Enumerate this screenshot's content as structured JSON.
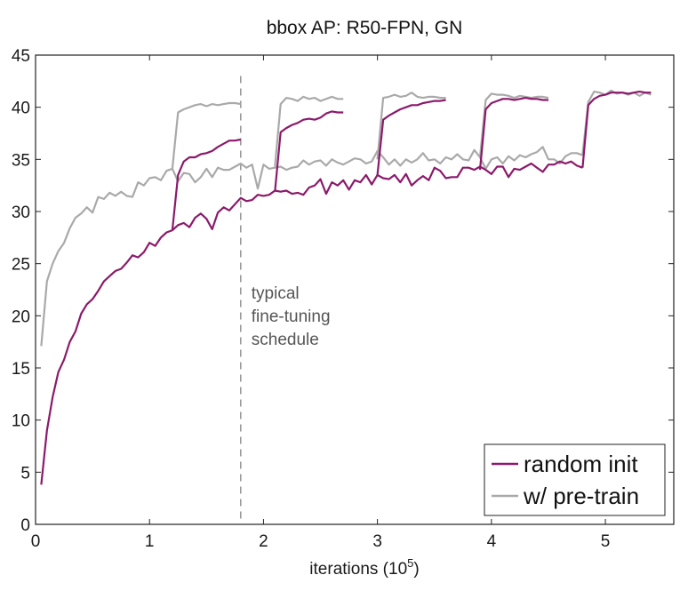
{
  "chart_data": {
    "type": "line",
    "title": "bbox AP: R50-FPN, GN",
    "xlabel": "iterations (10^5)",
    "xlabel_base": "iterations (10",
    "xlabel_exp": "5",
    "xlabel_close": ")",
    "ylabel": "",
    "xlim": [
      0,
      5.6
    ],
    "ylim": [
      0,
      45
    ],
    "xticks": [
      0,
      1,
      2,
      3,
      4,
      5
    ],
    "xtick_labels": [
      "0",
      "1",
      "2",
      "3",
      "4",
      "5"
    ],
    "yticks": [
      0,
      5,
      10,
      15,
      20,
      25,
      30,
      35,
      40,
      45
    ],
    "ytick_labels": [
      "0",
      "5",
      "10",
      "15",
      "20",
      "25",
      "30",
      "35",
      "40",
      "45"
    ],
    "grid": false,
    "legend_position": "bottom-right",
    "annotation": {
      "lines": [
        "typical",
        "fine-tuning",
        "schedule"
      ],
      "vline_x": 1.8
    },
    "series": [
      {
        "name": "random init",
        "color": "#8b1a6b",
        "segments": [
          {
            "x": [
              0.05,
              0.1,
              0.15,
              0.2,
              0.25,
              0.3,
              0.35,
              0.4,
              0.45,
              0.5,
              0.55,
              0.6,
              0.65,
              0.7,
              0.75,
              0.8,
              0.85,
              0.9,
              0.95,
              1.0,
              1.05,
              1.1,
              1.15,
              1.2,
              1.25,
              1.3,
              1.35,
              1.4,
              1.45,
              1.5,
              1.55,
              1.6,
              1.65,
              1.7,
              1.75,
              1.8,
              1.85,
              1.9,
              1.95,
              2.0,
              2.05,
              2.1,
              2.15,
              2.2,
              2.25,
              2.3,
              2.35,
              2.4,
              2.45,
              2.5,
              2.55,
              2.6,
              2.65,
              2.7,
              2.75,
              2.8,
              2.85,
              2.9,
              2.95,
              3.0,
              3.05,
              3.1,
              3.15,
              3.2,
              3.25,
              3.3,
              3.35,
              3.4,
              3.45,
              3.5,
              3.55,
              3.6,
              3.65,
              3.7,
              3.75,
              3.8,
              3.85,
              3.9,
              3.95,
              4.0,
              4.05,
              4.1,
              4.15,
              4.2,
              4.25,
              4.3,
              4.35,
              4.4,
              4.45,
              4.5,
              4.55,
              4.6,
              4.65,
              4.7,
              4.75,
              4.8
            ],
            "y": [
              3.8,
              9.0,
              12.2,
              14.6,
              15.8,
              17.5,
              18.5,
              20.2,
              21.1,
              21.6,
              22.4,
              23.3,
              23.8,
              24.3,
              24.5,
              25.1,
              25.8,
              25.6,
              26.1,
              27.0,
              26.7,
              27.5,
              28.0,
              28.2,
              28.7,
              28.9,
              28.5,
              29.4,
              29.8,
              29.3,
              28.3,
              29.9,
              30.4,
              30.1,
              30.7,
              31.3,
              31.0,
              31.1,
              31.6,
              31.5,
              31.6,
              32.0,
              31.9,
              32.0,
              31.7,
              31.8,
              31.6,
              32.3,
              32.5,
              33.1,
              31.7,
              32.8,
              32.5,
              33.0,
              32.1,
              33.0,
              32.8,
              33.5,
              32.6,
              33.5,
              33.2,
              33.1,
              33.5,
              32.8,
              33.6,
              32.5,
              33.0,
              33.4,
              33.0,
              34.2,
              33.9,
              33.2,
              33.3,
              33.3,
              34.2,
              34.2,
              34.0,
              34.3,
              34.0,
              33.6,
              34.3,
              34.3,
              33.3,
              34.1,
              34.0,
              34.3,
              34.6,
              34.2,
              33.8,
              34.5,
              34.5,
              34.8,
              34.6,
              34.8,
              34.4,
              34.2
            ]
          },
          {
            "x": [
              1.2,
              1.25,
              1.3,
              1.35,
              1.4,
              1.45,
              1.5,
              1.55,
              1.6,
              1.65,
              1.7,
              1.75,
              1.8
            ],
            "y": [
              28.2,
              33.5,
              34.8,
              35.2,
              35.2,
              35.5,
              35.6,
              35.8,
              36.2,
              36.5,
              36.8,
              36.8,
              36.9
            ]
          },
          {
            "x": [
              2.1,
              2.15,
              2.2,
              2.25,
              2.3,
              2.35,
              2.4,
              2.45,
              2.5,
              2.55,
              2.6,
              2.65,
              2.7
            ],
            "y": [
              31.9,
              37.6,
              38.0,
              38.3,
              38.5,
              38.8,
              38.9,
              38.8,
              39.0,
              39.4,
              39.6,
              39.5,
              39.5
            ]
          },
          {
            "x": [
              3.0,
              3.05,
              3.1,
              3.15,
              3.2,
              3.25,
              3.3,
              3.35,
              3.4,
              3.45,
              3.5,
              3.55,
              3.6
            ],
            "y": [
              33.5,
              38.8,
              39.2,
              39.5,
              39.8,
              40.0,
              40.2,
              40.2,
              40.4,
              40.5,
              40.6,
              40.6,
              40.7
            ]
          },
          {
            "x": [
              3.9,
              3.95,
              4.0,
              4.05,
              4.1,
              4.15,
              4.2,
              4.25,
              4.3,
              4.35,
              4.4,
              4.45,
              4.5
            ],
            "y": [
              34.0,
              39.8,
              40.4,
              40.6,
              40.8,
              40.8,
              40.7,
              40.8,
              40.9,
              40.8,
              40.8,
              40.7,
              40.7
            ]
          },
          {
            "x": [
              4.8,
              4.85,
              4.9,
              4.95,
              5.0,
              5.05,
              5.1,
              5.15,
              5.2,
              5.25,
              5.3,
              5.35,
              5.4
            ],
            "y": [
              34.2,
              40.2,
              40.8,
              41.1,
              41.2,
              41.4,
              41.4,
              41.4,
              41.3,
              41.4,
              41.5,
              41.4,
              41.4
            ]
          }
        ]
      },
      {
        "name": "w/ pre-train",
        "color": "#a9a9a9",
        "segments": [
          {
            "x": [
              0.05,
              0.1,
              0.15,
              0.2,
              0.25,
              0.3,
              0.35,
              0.4,
              0.45,
              0.5,
              0.55,
              0.6,
              0.65,
              0.7,
              0.75,
              0.8,
              0.85,
              0.9,
              0.95,
              1.0,
              1.05,
              1.1,
              1.15,
              1.2,
              1.25,
              1.3,
              1.35,
              1.4,
              1.45,
              1.5,
              1.55,
              1.6,
              1.65,
              1.7,
              1.75,
              1.8,
              1.85,
              1.9,
              1.95,
              2.0,
              2.05,
              2.1,
              2.15,
              2.2,
              2.25,
              2.3,
              2.35,
              2.4,
              2.45,
              2.5,
              2.55,
              2.6,
              2.65,
              2.7,
              2.75,
              2.8,
              2.85,
              2.9,
              2.95,
              3.0,
              3.05,
              3.1,
              3.15,
              3.2,
              3.25,
              3.3,
              3.35,
              3.4,
              3.45,
              3.5,
              3.55,
              3.6,
              3.65,
              3.7,
              3.75,
              3.8,
              3.85,
              3.9,
              3.95,
              4.0,
              4.05,
              4.1,
              4.15,
              4.2,
              4.25,
              4.3,
              4.35,
              4.4,
              4.45,
              4.5,
              4.55,
              4.6,
              4.65,
              4.7,
              4.75,
              4.8
            ],
            "y": [
              17.1,
              23.3,
              25.0,
              26.2,
              27.0,
              28.4,
              29.4,
              29.8,
              30.4,
              29.9,
              31.4,
              31.2,
              31.8,
              31.5,
              31.9,
              31.5,
              31.4,
              32.8,
              32.5,
              33.2,
              33.3,
              33.0,
              33.9,
              34.1,
              32.9,
              33.7,
              33.6,
              32.8,
              33.3,
              34.1,
              33.3,
              34.2,
              34.0,
              34.0,
              34.3,
              34.6,
              34.2,
              34.5,
              32.2,
              34.5,
              34.1,
              34.2,
              34.3,
              34.0,
              34.2,
              34.3,
              34.9,
              34.5,
              34.8,
              34.9,
              34.4,
              35.0,
              34.7,
              34.5,
              34.8,
              35.1,
              35.0,
              34.6,
              34.8,
              35.8,
              35.2,
              34.5,
              35.0,
              34.4,
              35.0,
              34.7,
              35.0,
              35.6,
              34.9,
              35.0,
              34.6,
              35.2,
              35.0,
              35.5,
              35.0,
              34.9,
              35.9,
              35.2,
              34.1,
              35.0,
              35.2,
              34.6,
              35.3,
              34.9,
              35.4,
              35.2,
              35.5,
              35.7,
              36.2,
              35.0,
              35.0,
              34.6,
              35.3,
              35.6,
              35.6,
              35.4
            ]
          },
          {
            "x": [
              1.2,
              1.25,
              1.3,
              1.35,
              1.4,
              1.45,
              1.5,
              1.55,
              1.6,
              1.65,
              1.7,
              1.75,
              1.8
            ],
            "y": [
              34.1,
              39.5,
              39.8,
              40.0,
              40.2,
              40.3,
              40.1,
              40.3,
              40.2,
              40.3,
              40.4,
              40.4,
              40.3
            ]
          },
          {
            "x": [
              2.1,
              2.15,
              2.2,
              2.25,
              2.3,
              2.35,
              2.4,
              2.45,
              2.5,
              2.55,
              2.6,
              2.65,
              2.7
            ],
            "y": [
              34.3,
              40.3,
              40.9,
              40.8,
              40.6,
              41.0,
              40.8,
              40.9,
              40.6,
              40.8,
              41.0,
              40.8,
              40.8
            ]
          },
          {
            "x": [
              3.0,
              3.05,
              3.1,
              3.15,
              3.2,
              3.25,
              3.3,
              3.35,
              3.4,
              3.45,
              3.5,
              3.55,
              3.6
            ],
            "y": [
              35.0,
              40.9,
              41.0,
              41.2,
              41.0,
              41.1,
              41.4,
              41.0,
              40.9,
              41.0,
              41.0,
              40.9,
              40.9
            ]
          },
          {
            "x": [
              3.9,
              3.95,
              4.0,
              4.05,
              4.1,
              4.15,
              4.2,
              4.25,
              4.3,
              4.35,
              4.4,
              4.45,
              4.5
            ],
            "y": [
              35.2,
              40.7,
              41.3,
              41.2,
              41.2,
              41.1,
              40.9,
              41.1,
              41.0,
              40.9,
              41.0,
              41.0,
              40.9
            ]
          },
          {
            "x": [
              4.8,
              4.85,
              4.9,
              4.95,
              5.0,
              5.05,
              5.1,
              5.15,
              5.2,
              5.25,
              5.3,
              5.35,
              5.4
            ],
            "y": [
              35.5,
              40.5,
              41.5,
              41.4,
              41.2,
              41.6,
              41.3,
              41.4,
              41.2,
              41.4,
              41.1,
              41.4,
              41.2
            ]
          }
        ]
      }
    ]
  }
}
